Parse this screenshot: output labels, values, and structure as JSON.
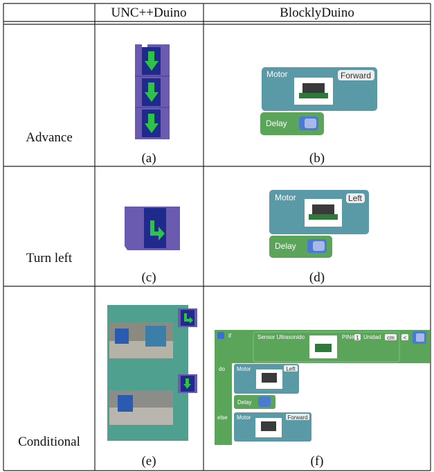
{
  "table": {
    "header": [
      "UNC++Duino",
      "BlocklyDuino"
    ],
    "rows": [
      {
        "label": "Advance",
        "captions": [
          "(a)",
          "(b)"
        ],
        "blockly": {
          "motor": "Motor",
          "direction": "Forward",
          "delay": "Delay"
        }
      },
      {
        "label": "Turn left",
        "captions": [
          "(c)",
          "(d)"
        ],
        "blockly": {
          "motor": "Motor",
          "direction": "Left",
          "delay": "Delay"
        }
      },
      {
        "label": "Conditional",
        "captions": [
          "(e)",
          "(f)"
        ],
        "blockly": {
          "if": "if",
          "sensor": "Sensor Ultrasonido",
          "pin": "PIN#",
          "pin_value": "1",
          "unit": "Unidad",
          "unit_value": "cm",
          "operator": "<",
          "do": "do",
          "else": "else",
          "motor": "Motor",
          "do_direction": "Left",
          "delay": "Delay",
          "else_direction": "Forward"
        }
      }
    ]
  }
}
